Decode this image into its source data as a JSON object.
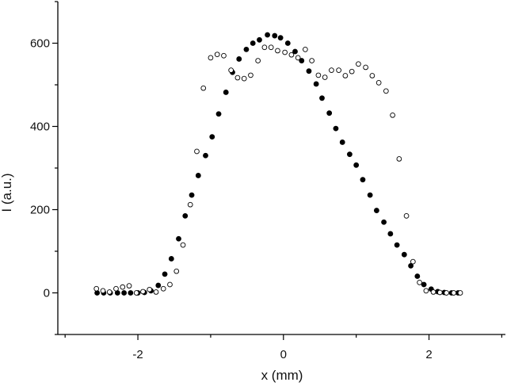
{
  "chart_data": {
    "type": "scatter",
    "title": "",
    "xlabel": "x (mm)",
    "ylabel": "I (a.u.)",
    "xlim": [
      -3.1,
      3.05
    ],
    "ylim": [
      -100,
      700
    ],
    "xticks": [
      -2,
      0,
      2
    ],
    "xtick_labels": [
      "-2",
      "0",
      "2"
    ],
    "yticks": [
      0,
      200,
      400,
      600
    ],
    "ytick_labels": [
      "0",
      "200",
      "400",
      "600"
    ],
    "grid": false,
    "legend": "none",
    "series": [
      {
        "marker": "filled-circle",
        "color": "#000000",
        "points": [
          [
            -2.56,
            0
          ],
          [
            -2.47,
            0
          ],
          [
            -2.38,
            0
          ],
          [
            -2.28,
            0
          ],
          [
            -2.19,
            0
          ],
          [
            -2.1,
            0
          ],
          [
            -2.0,
            0
          ],
          [
            -1.91,
            1
          ],
          [
            -1.82,
            5
          ],
          [
            -1.72,
            18
          ],
          [
            -1.63,
            45
          ],
          [
            -1.54,
            82
          ],
          [
            -1.44,
            130
          ],
          [
            -1.35,
            185
          ],
          [
            -1.26,
            235
          ],
          [
            -1.17,
            282
          ],
          [
            -1.07,
            330
          ],
          [
            -0.98,
            375
          ],
          [
            -0.89,
            430
          ],
          [
            -0.79,
            482
          ],
          [
            -0.7,
            530
          ],
          [
            -0.61,
            562
          ],
          [
            -0.51,
            585
          ],
          [
            -0.42,
            600
          ],
          [
            -0.33,
            608
          ],
          [
            -0.22,
            620
          ],
          [
            -0.12,
            618
          ],
          [
            -0.04,
            613
          ],
          [
            0.06,
            600
          ],
          [
            0.16,
            580
          ],
          [
            0.25,
            558
          ],
          [
            0.35,
            533
          ],
          [
            0.45,
            502
          ],
          [
            0.53,
            468
          ],
          [
            0.63,
            432
          ],
          [
            0.72,
            395
          ],
          [
            0.81,
            362
          ],
          [
            0.91,
            333
          ],
          [
            1.0,
            307
          ],
          [
            1.09,
            272
          ],
          [
            1.19,
            235
          ],
          [
            1.28,
            198
          ],
          [
            1.38,
            170
          ],
          [
            1.47,
            142
          ],
          [
            1.56,
            115
          ],
          [
            1.66,
            92
          ],
          [
            1.75,
            65
          ],
          [
            1.84,
            40
          ],
          [
            1.93,
            20
          ],
          [
            2.03,
            9
          ],
          [
            2.12,
            3
          ],
          [
            2.21,
            1
          ],
          [
            2.31,
            0
          ],
          [
            2.4,
            0
          ]
        ]
      },
      {
        "marker": "open-circle",
        "color": "#000000",
        "points": [
          [
            -2.57,
            10
          ],
          [
            -2.48,
            5
          ],
          [
            -2.39,
            2
          ],
          [
            -2.3,
            10
          ],
          [
            -2.21,
            14
          ],
          [
            -2.12,
            17
          ],
          [
            -2.02,
            0
          ],
          [
            -1.93,
            3
          ],
          [
            -1.84,
            8
          ],
          [
            -1.75,
            2
          ],
          [
            -1.65,
            10
          ],
          [
            -1.56,
            20
          ],
          [
            -1.47,
            52
          ],
          [
            -1.38,
            115
          ],
          [
            -1.28,
            212
          ],
          [
            -1.19,
            340
          ],
          [
            -1.1,
            492
          ],
          [
            -1.0,
            565
          ],
          [
            -0.91,
            573
          ],
          [
            -0.82,
            570
          ],
          [
            -0.72,
            535
          ],
          [
            -0.63,
            517
          ],
          [
            -0.54,
            515
          ],
          [
            -0.45,
            523
          ],
          [
            -0.35,
            558
          ],
          [
            -0.26,
            590
          ],
          [
            -0.17,
            590
          ],
          [
            -0.08,
            582
          ],
          [
            0.02,
            578
          ],
          [
            0.11,
            572
          ],
          [
            0.2,
            565
          ],
          [
            0.3,
            585
          ],
          [
            0.39,
            558
          ],
          [
            0.48,
            523
          ],
          [
            0.57,
            518
          ],
          [
            0.66,
            535
          ],
          [
            0.76,
            535
          ],
          [
            0.85,
            522
          ],
          [
            0.94,
            532
          ],
          [
            1.03,
            550
          ],
          [
            1.13,
            542
          ],
          [
            1.22,
            522
          ],
          [
            1.31,
            505
          ],
          [
            1.41,
            485
          ],
          [
            1.5,
            427
          ],
          [
            1.59,
            322
          ],
          [
            1.69,
            185
          ],
          [
            1.78,
            75
          ],
          [
            1.87,
            25
          ],
          [
            1.96,
            5
          ],
          [
            2.06,
            2
          ],
          [
            2.15,
            1
          ],
          [
            2.24,
            0
          ],
          [
            2.34,
            0
          ],
          [
            2.43,
            0
          ]
        ]
      }
    ]
  }
}
